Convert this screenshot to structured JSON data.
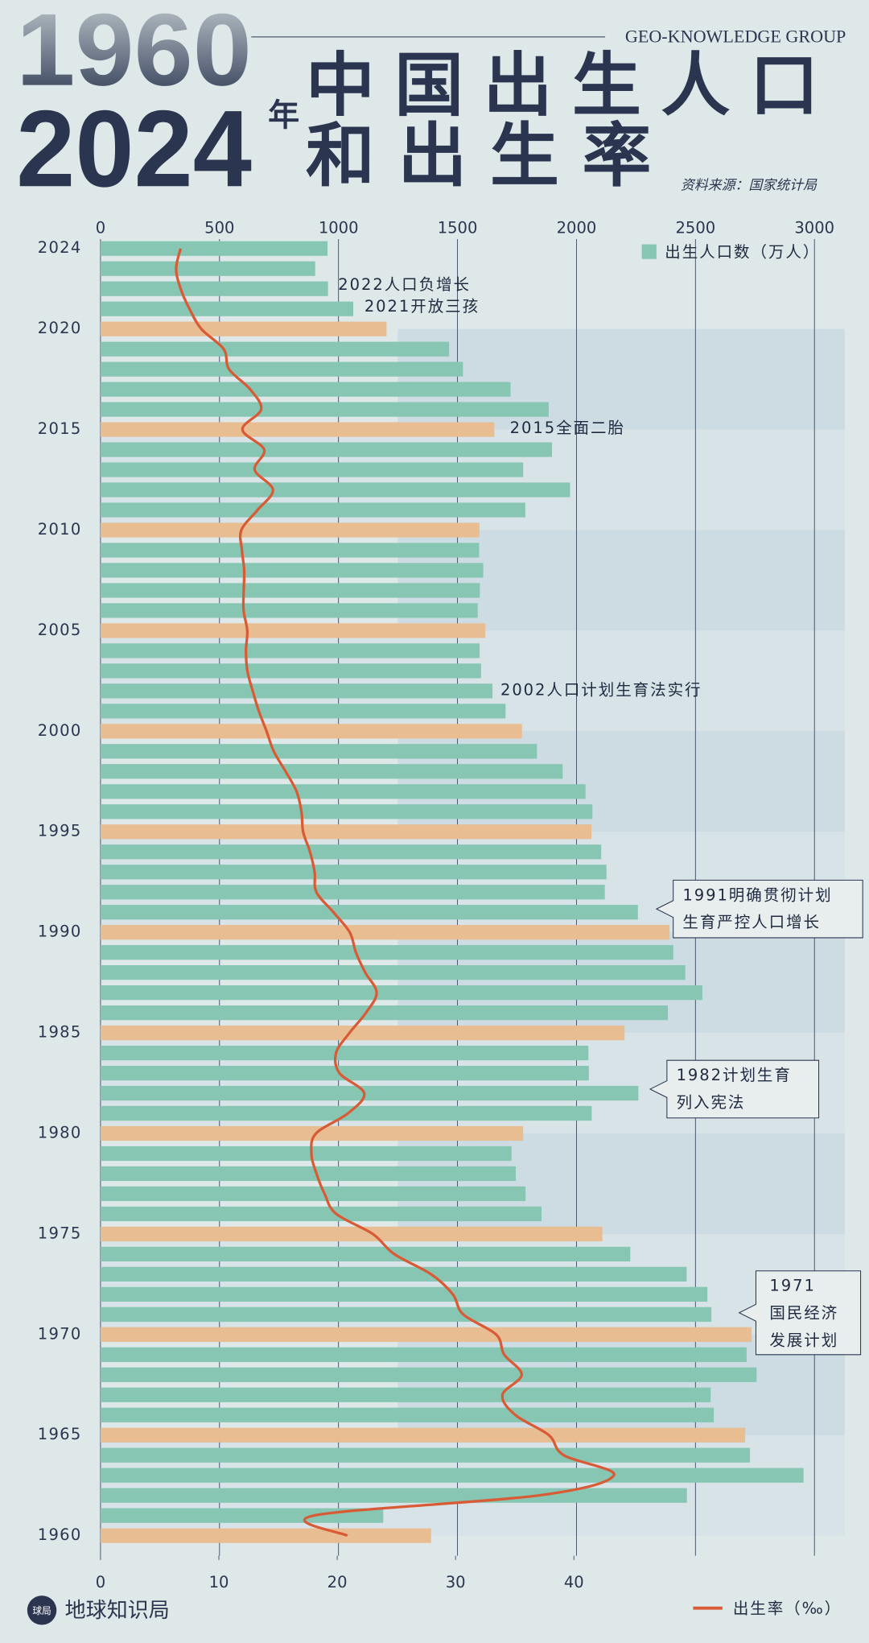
{
  "header": {
    "year_start": "1960",
    "year_end": "2024",
    "year_suffix": "年",
    "title_lines": [
      "中国出生人口",
      "和出生率"
    ],
    "brand": "GEO-KNOWLEDGE GROUP",
    "source": "资料来源：国家统计局"
  },
  "footer": {
    "logo_icon": "球局",
    "logo_text": "地球知识局"
  },
  "chart_data": {
    "type": "bar",
    "orientation": "horizontal",
    "categories": [
      "2024",
      null,
      null,
      null,
      "2020",
      null,
      null,
      null,
      null,
      "2015",
      null,
      null,
      null,
      null,
      "2010",
      null,
      null,
      null,
      null,
      "2005",
      null,
      null,
      null,
      null,
      "2000",
      null,
      null,
      null,
      null,
      "1995",
      null,
      null,
      null,
      null,
      "1990",
      null,
      null,
      null,
      null,
      "1985",
      null,
      null,
      null,
      null,
      "1980",
      null,
      null,
      null,
      null,
      "1975",
      null,
      null,
      null,
      null,
      "1970",
      null,
      null,
      null,
      null,
      "1965",
      null,
      null,
      null,
      null,
      "1960"
    ],
    "series": [
      {
        "name": "出生人口数（万人）",
        "color": "#86c6b3",
        "highlight_color": "#e8bd92",
        "values": [
          954,
          902,
          956,
          1062,
          1202,
          1465,
          1523,
          1723,
          1883,
          1655,
          1897,
          1776,
          1973,
          1785,
          1592,
          1591,
          1608,
          1594,
          1585,
          1617,
          1593,
          1599,
          1647,
          1702,
          1771,
          1834,
          1942,
          2038,
          2067,
          2063,
          2104,
          2126,
          2119,
          2258,
          2391,
          2407,
          2457,
          2529,
          2384,
          2202,
          2050,
          2052,
          2260,
          2064,
          1776,
          1727,
          1745,
          1786,
          1853,
          2109,
          2226,
          2463,
          2550,
          2567,
          2736,
          2715,
          2757,
          2564,
          2577,
          2709,
          2729,
          2954,
          2464,
          1188,
          1389
        ]
      },
      {
        "name": "出生率（‰）",
        "type": "line",
        "color": "#d95b35",
        "axis": "x2",
        "values": [
          6.77,
          6.39,
          6.77,
          7.52,
          8.52,
          10.41,
          10.86,
          12.64,
          13.57,
          11.99,
          13.83,
          13.03,
          14.57,
          13.27,
          11.9,
          11.95,
          12.14,
          12.1,
          12.09,
          12.4,
          12.29,
          12.41,
          12.86,
          13.38,
          14.03,
          14.64,
          15.64,
          16.57,
          16.98,
          17.12,
          17.7,
          18.09,
          18.24,
          19.68,
          21.06,
          21.58,
          22.37,
          23.33,
          22.43,
          21.04,
          19.9,
          20.19,
          22.28,
          20.91,
          18.21,
          17.82,
          18.25,
          18.93,
          19.91,
          23.01,
          24.82,
          27.93,
          29.77,
          30.65,
          33.43,
          34.11,
          35.59,
          33.96,
          35.05,
          37.88,
          39.14,
          43.37,
          37.01,
          18.02,
          20.86
        ]
      }
    ],
    "xlim": [
      0,
      3128
    ],
    "xticks": [
      0,
      500,
      1000,
      1500,
      2000,
      2500,
      3000
    ],
    "x2lim": [
      0,
      62.9
    ],
    "x2ticks": [
      0,
      10,
      20,
      30,
      40
    ],
    "grid": true,
    "annotations": [
      {
        "lines": [
          "2022人口负增长"
        ]
      },
      {
        "lines": [
          "2021开放三孩"
        ]
      },
      {
        "lines": [
          "2015全面二胎"
        ]
      },
      {
        "lines": [
          "2002人口计划生育法实行"
        ]
      },
      {
        "lines": [
          "1991明确贯彻计划",
          "生育严控人口增长"
        ]
      },
      {
        "lines": [
          "1982计划生育",
          "列入宪法"
        ]
      },
      {
        "lines": [
          "1971",
          "国民经济",
          "发展计划"
        ]
      }
    ]
  }
}
